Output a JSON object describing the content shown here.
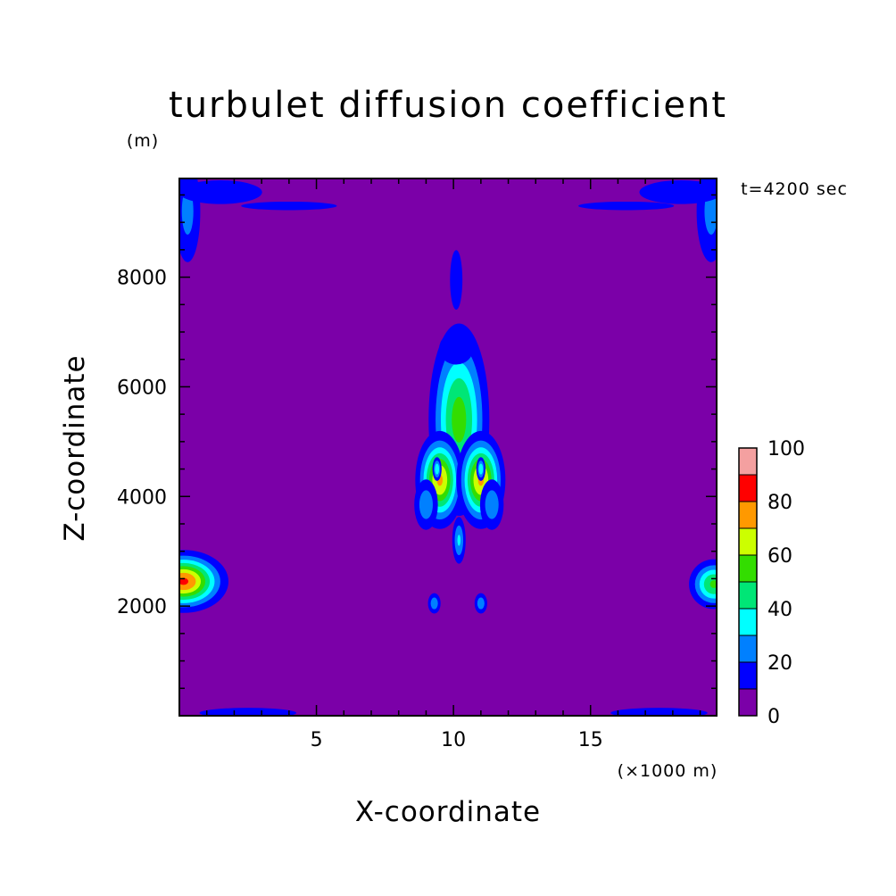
{
  "chart_data": {
    "type": "heatmap",
    "title": "turbulet diffusion coefficient",
    "xlabel": "X-coordinate",
    "ylabel": "Z-coordinate",
    "x_unit": "(×1000 m)",
    "y_unit": "(m)",
    "time_label": "t=4200 sec",
    "xlim": [
      0,
      19.6
    ],
    "ylim": [
      0,
      9800
    ],
    "x_ticks": [
      5,
      10,
      15
    ],
    "y_ticks": [
      2000,
      4000,
      6000,
      8000
    ],
    "colorbar": {
      "levels": [
        0,
        10,
        20,
        30,
        40,
        50,
        60,
        70,
        80,
        90,
        100
      ],
      "tick_labels": [
        0,
        20,
        40,
        60,
        80,
        100
      ],
      "colors": [
        "#7b00a8",
        "#0000ff",
        "#0080ff",
        "#00ffff",
        "#00e676",
        "#33dd00",
        "#ccff00",
        "#ff9900",
        "#ff0000",
        "#f4a0a0"
      ]
    },
    "features": [
      {
        "x": 10.2,
        "z": 5400,
        "sx": 0.6,
        "sz": 950,
        "value": 55
      },
      {
        "x": 9.5,
        "z": 4300,
        "sx": 0.45,
        "sz": 450,
        "value": 72
      },
      {
        "x": 11.0,
        "z": 4300,
        "sx": 0.45,
        "sz": 450,
        "value": 72
      },
      {
        "x": 9.4,
        "z": 4500,
        "sx": 0.1,
        "sz": 130,
        "value": 40
      },
      {
        "x": 11.0,
        "z": 4500,
        "sx": 0.1,
        "sz": 130,
        "value": 40
      },
      {
        "x": 9.0,
        "z": 3850,
        "sx": 0.3,
        "sz": 320,
        "value": 28
      },
      {
        "x": 11.4,
        "z": 3850,
        "sx": 0.3,
        "sz": 320,
        "value": 28
      },
      {
        "x": 10.2,
        "z": 3200,
        "sx": 0.16,
        "sz": 280,
        "value": 32
      },
      {
        "x": 9.3,
        "z": 2050,
        "sx": 0.16,
        "sz": 130,
        "value": 28
      },
      {
        "x": 11.0,
        "z": 2050,
        "sx": 0.16,
        "sz": 130,
        "value": 28
      },
      {
        "x": 10.1,
        "z": 6700,
        "sx": 0.55,
        "sz": 260,
        "value": 19
      },
      {
        "x": 10.1,
        "z": 7950,
        "sx": 0.2,
        "sz": 480,
        "value": 19
      },
      {
        "x": 0.15,
        "z": 2450,
        "sx": 0.8,
        "sz": 280,
        "value": 82
      },
      {
        "x": 19.5,
        "z": 2400,
        "sx": 0.5,
        "sz": 250,
        "value": 52
      },
      {
        "x": 0.3,
        "z": 9200,
        "sx": 0.35,
        "sz": 700,
        "value": 24
      },
      {
        "x": 19.4,
        "z": 9200,
        "sx": 0.4,
        "sz": 700,
        "value": 24
      },
      {
        "x": 1.5,
        "z": 9550,
        "sx": 1.4,
        "sz": 200,
        "value": 18
      },
      {
        "x": 18.3,
        "z": 9550,
        "sx": 1.4,
        "sz": 200,
        "value": 18
      },
      {
        "x": 4.0,
        "z": 9300,
        "sx": 1.8,
        "sz": 80,
        "value": 16
      },
      {
        "x": 16.3,
        "z": 9300,
        "sx": 1.8,
        "sz": 80,
        "value": 16
      },
      {
        "x": 2.5,
        "z": 50,
        "sx": 1.5,
        "sz": 80,
        "value": 20
      },
      {
        "x": 17.5,
        "z": 50,
        "sx": 1.5,
        "sz": 80,
        "value": 20
      }
    ]
  }
}
